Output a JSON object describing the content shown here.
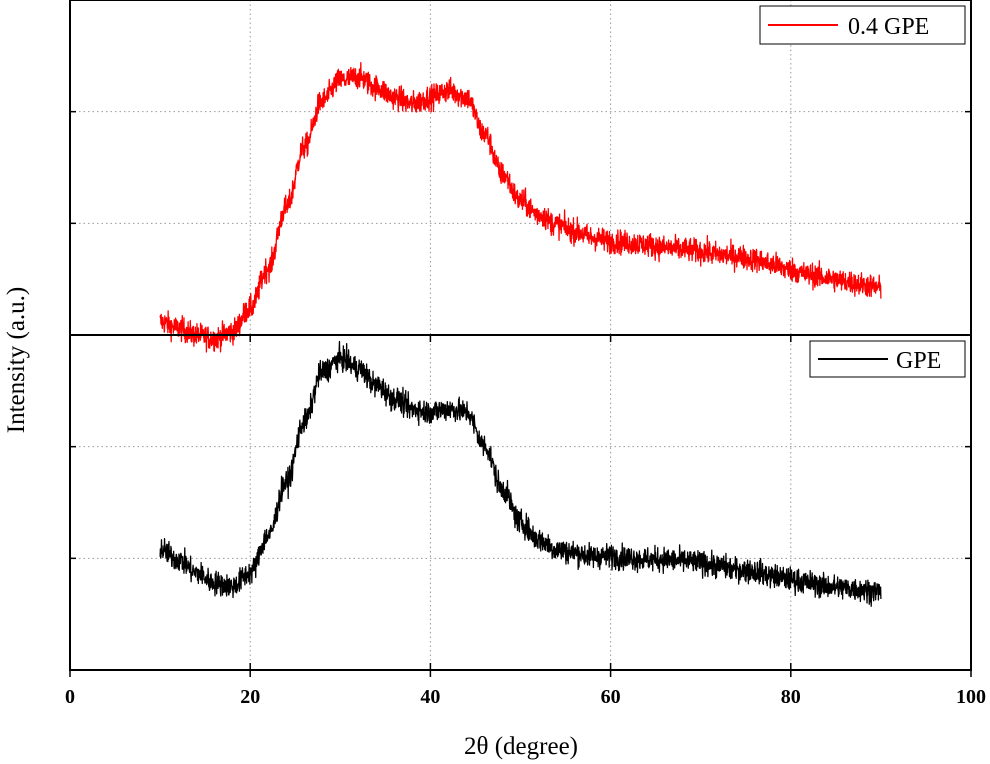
{
  "chart_data": {
    "type": "line",
    "title": "",
    "xlabel": "2θ (degree)",
    "ylabel": "Intensity (a.u.)",
    "xlim": [
      0,
      100
    ],
    "xticks": [
      0,
      20,
      40,
      60,
      80,
      100
    ],
    "xtick_labels": [
      "0",
      "20",
      "40",
      "60",
      "80",
      "100"
    ],
    "ylim": [
      0,
      10
    ],
    "grid": true,
    "panels": [
      {
        "name": "top",
        "legend": "top-right",
        "series": [
          {
            "name": "0.4 GPE",
            "color": "#ff0000",
            "noise": 0.35,
            "x": [
              10,
              12,
              14,
              16,
              18,
              20,
              22,
              24,
              26,
              28,
              30,
              32,
              34,
              36,
              38,
              40,
              42,
              44,
              46,
              48,
              50,
              52,
              54,
              56,
              58,
              60,
              62,
              64,
              66,
              68,
              70,
              72,
              74,
              76,
              78,
              80,
              82,
              84,
              86,
              88,
              90
            ],
            "y": [
              0.4,
              0.2,
              0.0,
              -0.1,
              0.1,
              0.8,
              2.0,
              3.8,
              5.6,
              7.0,
              7.6,
              7.7,
              7.4,
              7.1,
              6.9,
              7.1,
              7.3,
              7.1,
              6.0,
              4.8,
              4.0,
              3.6,
              3.3,
              3.1,
              2.9,
              2.8,
              2.75,
              2.7,
              2.6,
              2.55,
              2.5,
              2.4,
              2.35,
              2.25,
              2.1,
              1.95,
              1.8,
              1.7,
              1.6,
              1.5,
              1.4
            ]
          }
        ]
      },
      {
        "name": "bottom",
        "legend": "top-right",
        "series": [
          {
            "name": "GPE",
            "color": "#000000",
            "noise": 0.35,
            "x": [
              10,
              12,
              14,
              16,
              18,
              20,
              22,
              24,
              26,
              28,
              30,
              32,
              34,
              36,
              38,
              40,
              42,
              44,
              46,
              48,
              50,
              52,
              54,
              56,
              58,
              60,
              62,
              64,
              66,
              68,
              70,
              72,
              74,
              76,
              78,
              80,
              82,
              84,
              86,
              88,
              90
            ],
            "y": [
              3.6,
              3.3,
              2.9,
              2.6,
              2.5,
              2.9,
              4.0,
              5.6,
              7.4,
              8.9,
              9.3,
              9.0,
              8.5,
              8.1,
              7.8,
              7.7,
              7.8,
              7.7,
              6.7,
              5.4,
              4.4,
              3.9,
              3.6,
              3.5,
              3.4,
              3.4,
              3.35,
              3.3,
              3.3,
              3.25,
              3.2,
              3.1,
              3.0,
              2.95,
              2.8,
              2.7,
              2.6,
              2.5,
              2.45,
              2.4,
              2.35
            ]
          }
        ]
      }
    ]
  }
}
